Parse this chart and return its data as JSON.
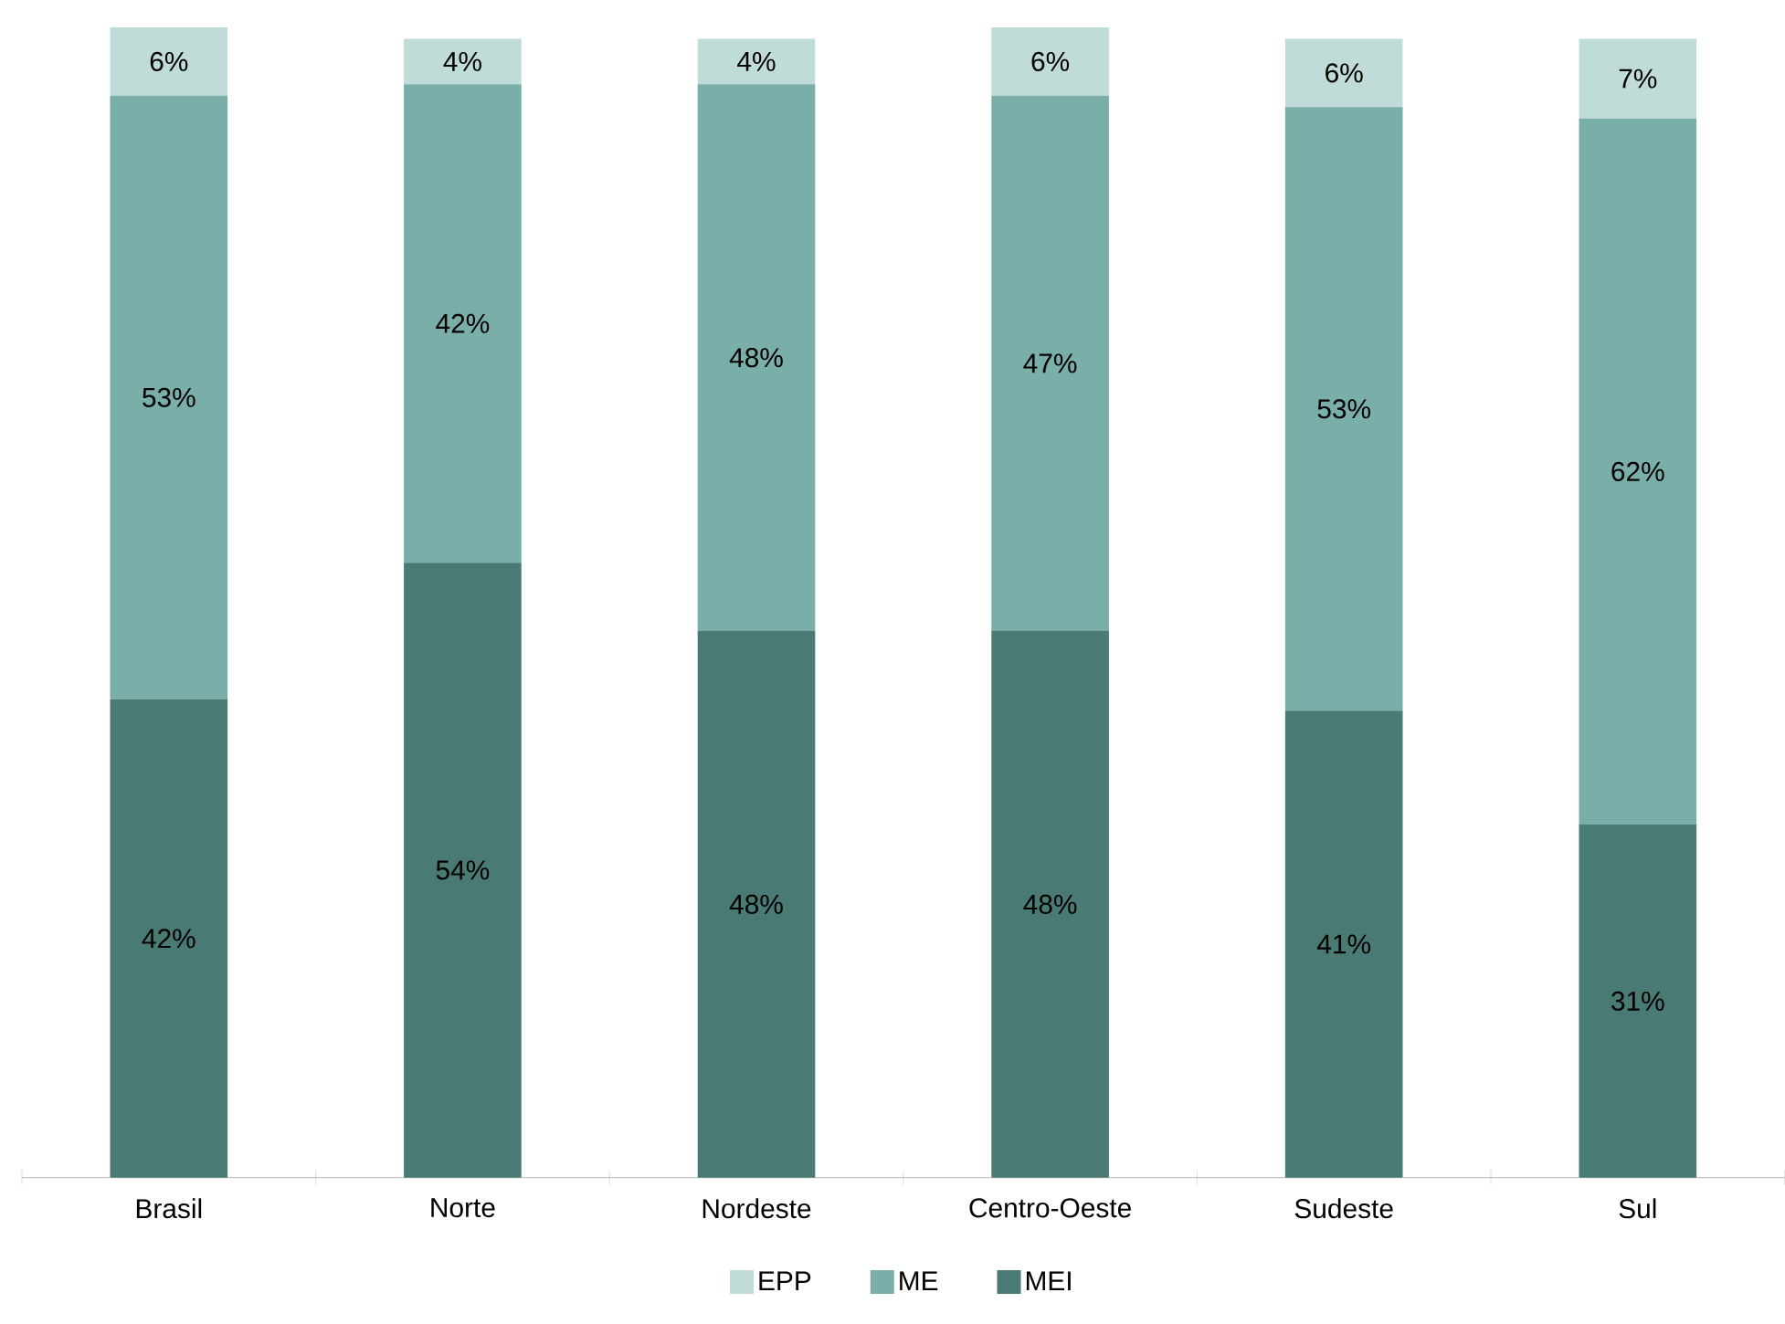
{
  "chart_data": {
    "type": "bar",
    "stacked": true,
    "categories": [
      "Brasil",
      "Norte",
      "Nordeste",
      "Centro-Oeste",
      "Sudeste",
      "Sul"
    ],
    "series": [
      {
        "name": "MEI",
        "color": "#4a7a74",
        "values": [
          42,
          54,
          48,
          48,
          41,
          31
        ],
        "value_labels": [
          "42%",
          "54%",
          "48%",
          "48%",
          "41%",
          "31%"
        ]
      },
      {
        "name": "ME",
        "color": "#7aaea8",
        "values": [
          53,
          42,
          48,
          47,
          53,
          62
        ],
        "value_labels": [
          "53%",
          "42%",
          "48%",
          "47%",
          "53%",
          "62%"
        ]
      },
      {
        "name": "EPP",
        "color": "#c0dcd8",
        "values": [
          6,
          4,
          4,
          6,
          6,
          7
        ],
        "value_labels": [
          "6%",
          "4%",
          "4%",
          "6%",
          "6%",
          "7%"
        ]
      }
    ],
    "legend": "bottom"
  }
}
